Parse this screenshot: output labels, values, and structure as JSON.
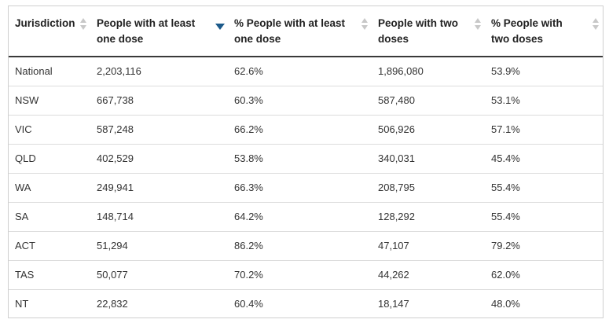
{
  "table": {
    "columns": [
      {
        "label": "Jurisdiction",
        "sort": "none"
      },
      {
        "label": "People with at least one dose",
        "sort": "desc"
      },
      {
        "label": "% People with at least one dose",
        "sort": "none"
      },
      {
        "label": "People with two doses",
        "sort": "none"
      },
      {
        "label": "% People with two doses",
        "sort": "none"
      }
    ],
    "rows": [
      [
        "National",
        "2,203,116",
        "62.6%",
        "1,896,080",
        "53.9%"
      ],
      [
        "NSW",
        "667,738",
        "60.3%",
        "587,480",
        "53.1%"
      ],
      [
        "VIC",
        "587,248",
        "66.2%",
        "506,926",
        "57.1%"
      ],
      [
        "QLD",
        "402,529",
        "53.8%",
        "340,031",
        "45.4%"
      ],
      [
        "WA",
        "249,941",
        "66.3%",
        "208,795",
        "55.4%"
      ],
      [
        "SA",
        "148,714",
        "64.2%",
        "128,292",
        "55.4%"
      ],
      [
        "ACT",
        "51,294",
        "86.2%",
        "47,107",
        "79.2%"
      ],
      [
        "TAS",
        "50,077",
        "70.2%",
        "44,262",
        "62.0%"
      ],
      [
        "NT",
        "22,832",
        "60.4%",
        "18,147",
        "48.0%"
      ]
    ],
    "colors": {
      "sort_active": "#1c5a8a",
      "sort_inactive": "#c8c8c8"
    }
  }
}
